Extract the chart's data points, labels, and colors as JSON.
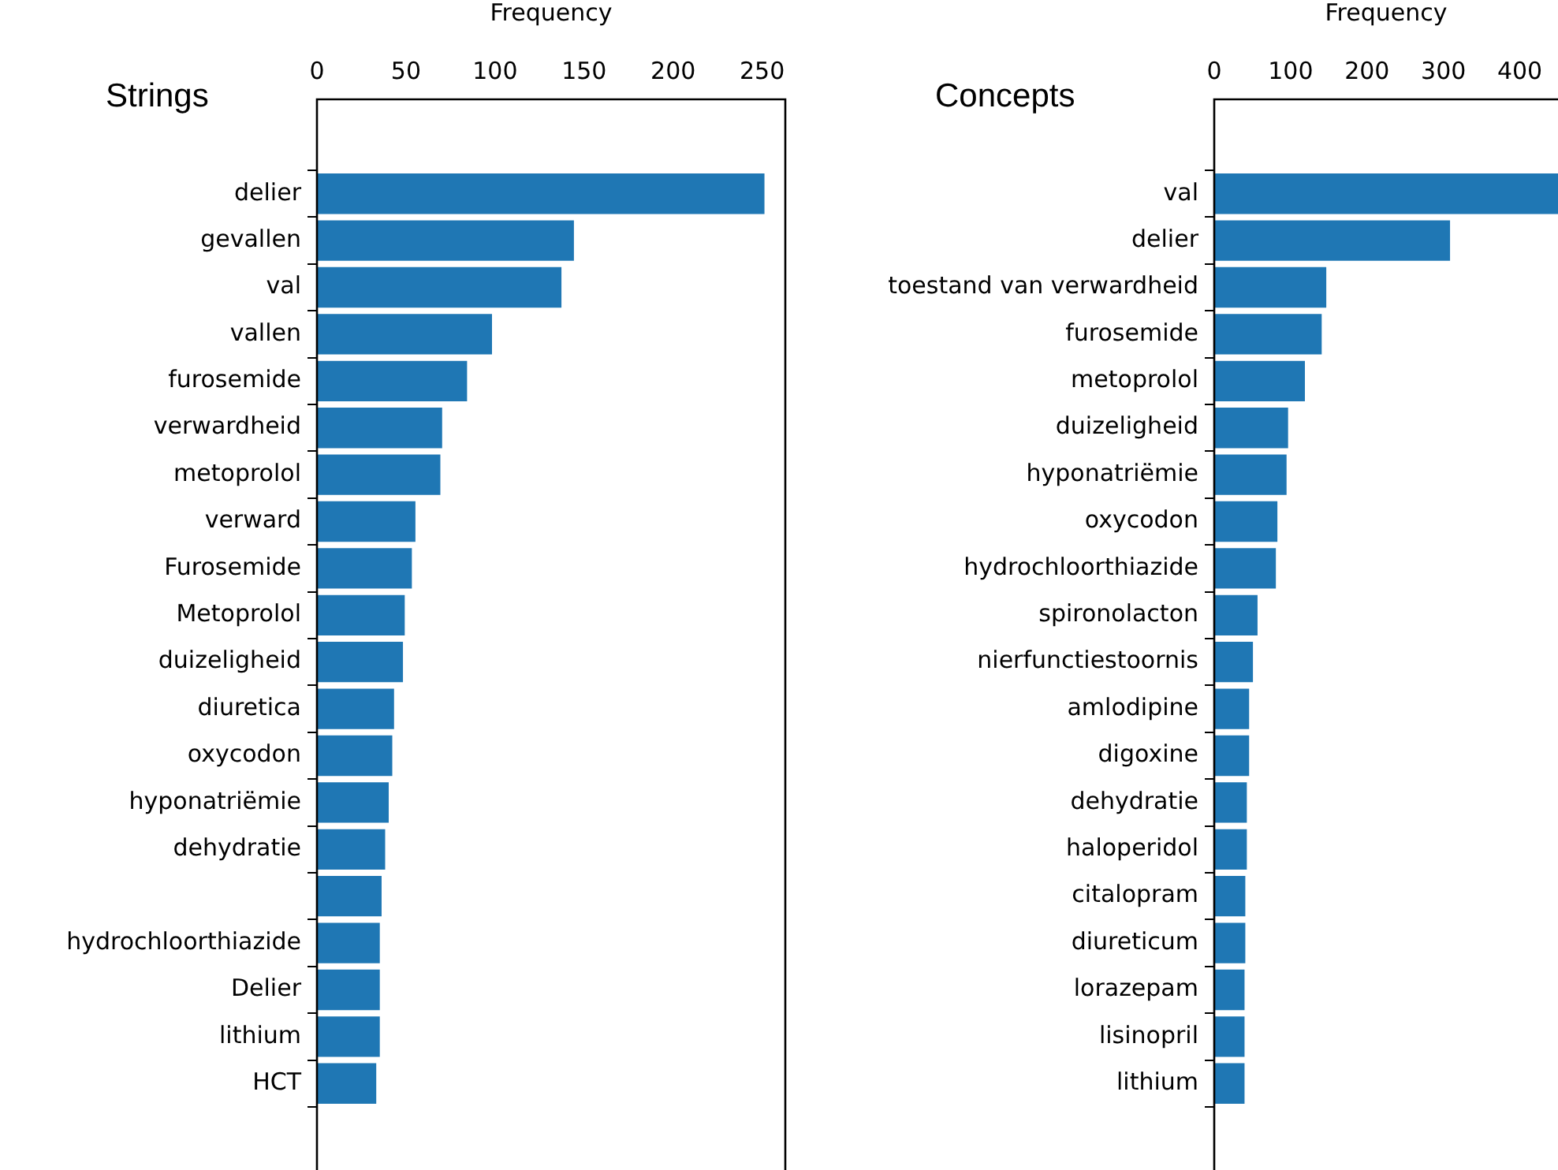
{
  "chart_data": [
    {
      "type": "bar",
      "orientation": "horizontal",
      "title": "Strings",
      "xlabel": "Frequency",
      "color": "#1f77b4",
      "xlim": [
        0,
        263
      ],
      "xticks": [
        0,
        50,
        100,
        150,
        200,
        250
      ],
      "grid": false,
      "categories": [
        "delier",
        "gevallen",
        "val",
        "vallen",
        "furosemide",
        "verwardheid",
        "metoprolol",
        "verward",
        "Furosemide",
        "Metoprolol",
        "duizeligheid",
        "diuretica",
        "oxycodon",
        "hyponatriëmie",
        "dehydratie",
        null,
        "hydrochloorthiazide",
        "Delier",
        "lithium",
        "HCT"
      ],
      "values": [
        251,
        144,
        137,
        98,
        84,
        70,
        69,
        55,
        53,
        49,
        48,
        43,
        42,
        40,
        38,
        36,
        35,
        35,
        35,
        33
      ]
    },
    {
      "type": "bar",
      "orientation": "horizontal",
      "title": "Concepts",
      "xlabel": "Frequency",
      "color": "#1f77b4",
      "xlim": [
        0,
        450
      ],
      "xticks": [
        0,
        100,
        200,
        300,
        400
      ],
      "grid": false,
      "categories": [
        "val",
        "delier",
        "toestand van verwardheid",
        "furosemide",
        "metoprolol",
        "duizeligheid",
        "hyponatriëmie",
        "oxycodon",
        "hydrochloorthiazide",
        "spironolacton",
        "nierfunctiestoornis",
        "amlodipine",
        "digoxine",
        "dehydratie",
        "haloperidol",
        "citalopram",
        "diureticum",
        "lorazepam",
        "lisinopril",
        "lithium"
      ],
      "values": [
        450,
        308,
        146,
        140,
        118,
        96,
        94,
        82,
        80,
        56,
        50,
        45,
        45,
        42,
        42,
        40,
        40,
        39,
        39,
        39
      ]
    }
  ]
}
